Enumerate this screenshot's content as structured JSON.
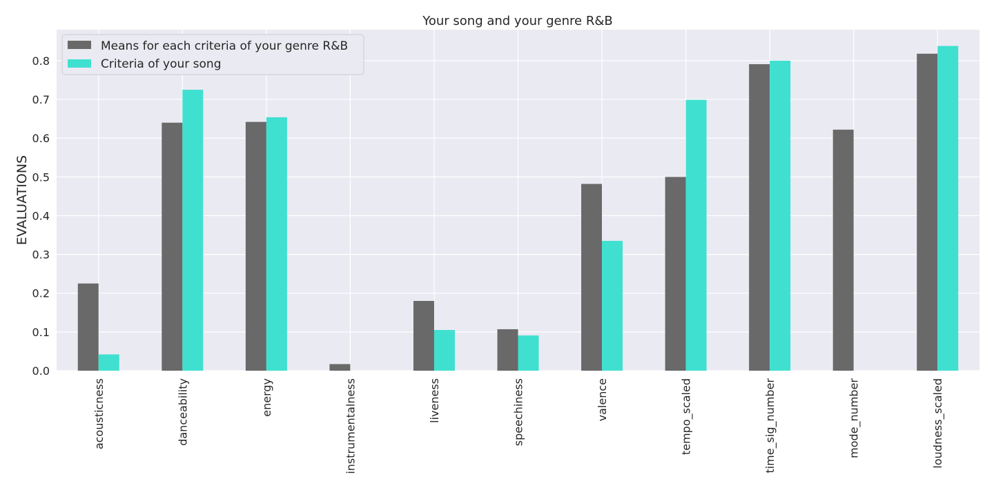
{
  "chart_data": {
    "type": "bar",
    "title": "Your song and your genre R&B",
    "xlabel": "",
    "ylabel": "EVALUATIONS",
    "ylim": [
      0,
      0.88
    ],
    "yticks": [
      "0.0",
      "0.1",
      "0.2",
      "0.3",
      "0.4",
      "0.5",
      "0.6",
      "0.7",
      "0.8"
    ],
    "grid": true,
    "legend_position": "top-left",
    "categories": [
      "acousticness",
      "danceability",
      "energy",
      "instrumentalness",
      "liveness",
      "speechiness",
      "valence",
      "tempo_scaled",
      "time_sig_number",
      "mode_number",
      "loudness_scaled"
    ],
    "series": [
      {
        "name": "Means for each criteria of your genre R&B",
        "color": "#696969",
        "values": [
          0.225,
          0.64,
          0.642,
          0.017,
          0.18,
          0.107,
          0.482,
          0.5,
          0.791,
          0.622,
          0.818
        ]
      },
      {
        "name": "Criteria of your song",
        "color": "#40e0d0",
        "values": [
          0.042,
          0.725,
          0.654,
          0.0,
          0.105,
          0.091,
          0.335,
          0.699,
          0.8,
          0.0,
          0.838
        ]
      }
    ]
  }
}
